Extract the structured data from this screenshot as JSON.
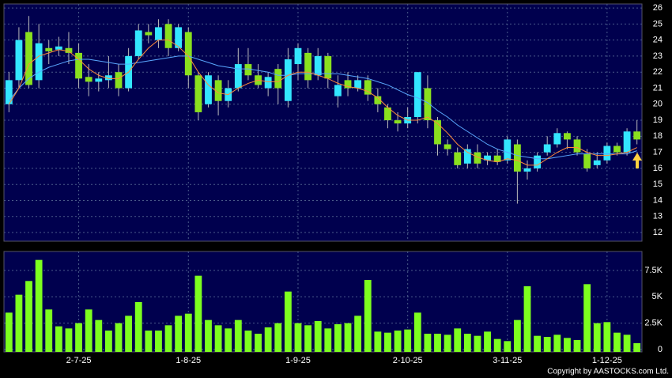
{
  "chart_data": [
    {
      "type": "candlestick",
      "open": [
        20,
        21.5,
        24.5,
        21.5,
        23.5,
        23.4,
        23.5,
        23.2,
        21.7,
        21.4,
        21.5,
        22,
        21,
        23,
        24.5,
        24,
        25,
        23.5,
        24.5,
        21.8,
        20,
        21.5,
        20.2,
        21,
        22.5,
        21.8,
        21,
        22.2,
        20.2,
        22.5,
        23.2,
        21.8,
        23,
        20.5,
        21.5,
        21,
        21.5,
        20.5,
        19.8,
        19,
        18.8,
        19.2,
        21,
        19,
        17.5,
        17,
        16.3,
        17,
        16.5,
        16.8,
        16.5,
        17.5,
        15.8,
        16,
        17,
        17.5,
        18.2,
        17.8,
        16.9,
        16.2,
        16.5,
        17.4,
        17,
        18.3
      ],
      "high": [
        22,
        24.8,
        25.5,
        25,
        24,
        24.2,
        24.5,
        23.8,
        22.5,
        22,
        23,
        22.5,
        23.5,
        25,
        25,
        25.3,
        25.3,
        25,
        24.8,
        22,
        22,
        21.8,
        21.5,
        23.5,
        23.5,
        22.5,
        22,
        22.5,
        23.5,
        23.8,
        23.5,
        23.5,
        23.2,
        21.8,
        22,
        21.8,
        21.8,
        21,
        20,
        19.5,
        19.8,
        22,
        21.8,
        19.2,
        17.8,
        17.3,
        17.5,
        17.5,
        17,
        17.2,
        18,
        17.8,
        16.5,
        17,
        18,
        18.5,
        18.3,
        18,
        17.2,
        17,
        17.6,
        17.6,
        18.5,
        19
      ],
      "low": [
        19.5,
        21,
        21,
        21,
        22.5,
        23,
        22.5,
        21,
        20.5,
        20.8,
        21,
        20.5,
        20.8,
        22.8,
        23.8,
        23.5,
        23,
        23.3,
        21,
        19,
        19.8,
        19.3,
        19.8,
        20.8,
        21.5,
        21,
        20.5,
        20,
        19.8,
        21.5,
        21,
        21.5,
        21,
        19.8,
        20.5,
        20.8,
        20.2,
        19.5,
        18.5,
        18.3,
        18.5,
        18.8,
        18.5,
        16.8,
        16.8,
        16,
        16,
        16,
        16.2,
        16.2,
        16.3,
        13.8,
        15.3,
        15.8,
        16.8,
        17.3,
        17.2,
        16.8,
        15.8,
        16,
        16.3,
        16.8,
        16.8,
        17.5
      ],
      "close": [
        21.5,
        24,
        21.2,
        23.8,
        23.3,
        23.6,
        23.2,
        21.6,
        21.4,
        21.6,
        21.8,
        21,
        23,
        24.6,
        24.3,
        24.8,
        23.5,
        24.8,
        21.8,
        19.5,
        21.8,
        20.2,
        21,
        22.5,
        21.8,
        21.2,
        21.7,
        21,
        22.8,
        23.5,
        21.5,
        23,
        21.6,
        21.2,
        21,
        21.5,
        20.6,
        20,
        19,
        18.8,
        19.2,
        22,
        19,
        17.5,
        17.2,
        16.2,
        17.2,
        16.3,
        16.8,
        16.4,
        17.8,
        15.8,
        16,
        16.8,
        17.5,
        18.2,
        17.8,
        17,
        16,
        16.5,
        17.4,
        17,
        18.3,
        17.8
      ],
      "up_color": "#33e6ff",
      "down_color": "#8ae01e",
      "series": [
        {
          "color": "#5aa8ff",
          "values": [
            20.2,
            21,
            21.6,
            22,
            22.3,
            22.5,
            22.7,
            22.8,
            22.8,
            22.7,
            22.6,
            22.5,
            22.5,
            22.6,
            22.7,
            22.8,
            22.9,
            23,
            23,
            22.8,
            22.6,
            22.4,
            22.3,
            22.2,
            22.2,
            22.1,
            22,
            21.8,
            21.8,
            21.9,
            21.9,
            21.9,
            21.9,
            21.9,
            21.8,
            21.7,
            21.6,
            21.4,
            21.2,
            20.9,
            20.6,
            20.4,
            20.1,
            19.6,
            19.2,
            18.7,
            18.3,
            17.9,
            17.5,
            17.2,
            17,
            16.8,
            16.7,
            16.6,
            16.6,
            16.7,
            16.8,
            16.9,
            16.9,
            16.9,
            16.9,
            16.9,
            16.9,
            17.1
          ]
        },
        {
          "color": "#ff8c3a",
          "values": [
            20,
            21,
            22.5,
            23,
            23.2,
            23.4,
            23.3,
            22.8,
            22.2,
            21.8,
            21.6,
            21.6,
            22,
            22.8,
            23.5,
            24,
            24,
            23.6,
            23,
            22,
            21.2,
            20.7,
            20.6,
            21,
            21.3,
            21.5,
            21.4,
            21.4,
            21.8,
            22,
            22,
            21.8,
            21.6,
            21.3,
            21.1,
            21,
            20.8,
            20.4,
            19.8,
            19.3,
            19,
            19,
            19.2,
            18.8,
            18.2,
            17.5,
            17,
            16.7,
            16.5,
            16.4,
            16.6,
            16.5,
            16.2,
            16.2,
            16.6,
            17,
            17.3,
            17.3,
            17,
            16.8,
            16.8,
            16.9,
            17,
            17.3
          ]
        }
      ],
      "ylim": [
        11.46,
        26.25
      ],
      "yticks": [
        12,
        13,
        14,
        15,
        16,
        17,
        18,
        19,
        20,
        21,
        22,
        23,
        24,
        25,
        26
      ],
      "grid": true
    },
    {
      "type": "bar",
      "categories": [
        null,
        null,
        null,
        null,
        null,
        null,
        null,
        "2-7-25",
        null,
        null,
        null,
        null,
        null,
        null,
        null,
        null,
        null,
        null,
        "1-8-25",
        null,
        null,
        null,
        null,
        null,
        null,
        null,
        null,
        null,
        null,
        "1-9-25",
        null,
        null,
        null,
        null,
        null,
        null,
        null,
        null,
        null,
        null,
        "2-10-25",
        null,
        null,
        null,
        null,
        null,
        null,
        null,
        null,
        null,
        "3-11-25",
        null,
        null,
        null,
        null,
        null,
        null,
        null,
        null,
        null,
        "1-12-25",
        null,
        null,
        null
      ],
      "values": [
        3500,
        5200,
        6500,
        8500,
        3800,
        2200,
        2000,
        2500,
        3800,
        2800,
        1800,
        2500,
        3200,
        4500,
        1800,
        1800,
        2300,
        3200,
        3400,
        7000,
        2800,
        2300,
        2000,
        2800,
        1800,
        1500,
        2100,
        2500,
        5500,
        2500,
        2300,
        2700,
        2000,
        2400,
        2500,
        3200,
        6600,
        1700,
        1600,
        1800,
        1900,
        3500,
        1500,
        1500,
        1400,
        2000,
        1500,
        1300,
        1700,
        1000,
        800,
        2800,
        6000,
        1300,
        1200,
        1400,
        1100,
        900,
        6200,
        2500,
        2600,
        1600,
        1400,
        600
      ],
      "color": "#7dff1e",
      "ylim": [
        0,
        9300
      ],
      "yticks": [
        0,
        {
          "value": 2500,
          "label": "2.5K"
        },
        {
          "value": 5000,
          "label": "5K"
        },
        {
          "value": 7500,
          "label": "7.5K"
        }
      ],
      "grid": true
    }
  ],
  "copyright": "Copyright by AASTOCKS.com Ltd."
}
